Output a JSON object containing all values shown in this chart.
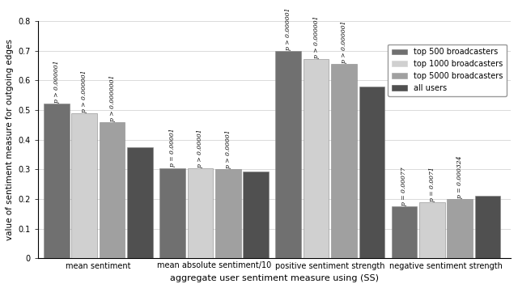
{
  "groups": [
    "mean sentiment",
    "mean absolute sentiment/10",
    "positive sentiment strength",
    "negative sentiment strength"
  ],
  "series": [
    "top 500 broadcasters",
    "top 1000 broadcasters",
    "top 5000 broadcasters",
    "all users"
  ],
  "values": [
    [
      0.522,
      0.49,
      0.46,
      0.375
    ],
    [
      0.305,
      0.304,
      0.302,
      0.294
    ],
    [
      0.7,
      0.673,
      0.655,
      0.58
    ],
    [
      0.175,
      0.19,
      0.2,
      0.21
    ]
  ],
  "colors": [
    "#707070",
    "#d0d0d0",
    "#a0a0a0",
    "#505050"
  ],
  "bar_width": 0.055,
  "annotations": [
    [
      "p > 0.000001",
      "p > 0.000001",
      "p > 0.0000001",
      ""
    ],
    [
      "p = 0.00001",
      "p > 0.00001",
      "p > 0.00001",
      ""
    ],
    [
      "p > 0.000001",
      "p > 0.000001",
      "p > 0.000001",
      ""
    ],
    [
      "p = 0.00077",
      "p = 0.0071",
      "p = 0.000324",
      ""
    ]
  ],
  "xlabel": "aggregate user sentiment measure using (SS)",
  "ylabel": "value of sentiment measure for outgoing edges",
  "ylim": [
    0,
    0.8
  ],
  "yticks": [
    0,
    0.1,
    0.2,
    0.3,
    0.4,
    0.5,
    0.6,
    0.7,
    0.8
  ],
  "legend_fontsize": 7,
  "annotation_fontsize": 5.5,
  "xlabel_fontsize": 8,
  "ylabel_fontsize": 7.5,
  "tick_fontsize": 7
}
